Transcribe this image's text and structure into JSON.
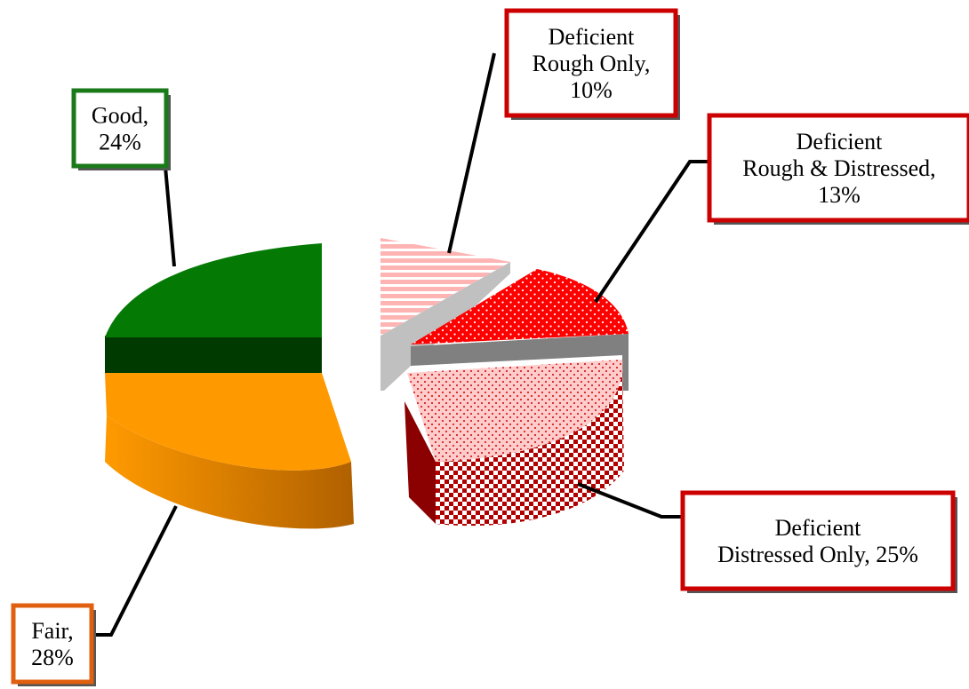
{
  "chart_data": {
    "type": "pie",
    "title": "",
    "style": "3d-exploded",
    "slices": [
      {
        "label_lines": [
          "Good,",
          "24%"
        ],
        "name": "Good",
        "value": 24,
        "color": "#008000",
        "border": "#1a7a1a"
      },
      {
        "label_lines": [
          "Fair,",
          "28%"
        ],
        "name": "Fair",
        "value": 28,
        "color": "#ff9900",
        "border": "#e06010"
      },
      {
        "label_lines": [
          "Deficient",
          "Rough Only,",
          "10%"
        ],
        "name": "Deficient Rough Only",
        "value": 10,
        "color": "#ffb0b0",
        "border": "#cc0000"
      },
      {
        "label_lines": [
          "Deficient",
          "Rough & Distressed,",
          "13%"
        ],
        "name": "Deficient Rough & Distressed",
        "value": 13,
        "color": "#ff0000",
        "border": "#cc0000"
      },
      {
        "label_lines": [
          "Deficient",
          "Distressed  Only, 25%"
        ],
        "name": "Deficient Distressed Only",
        "value": 25,
        "color": "#ffc8c8",
        "border": "#cc0000"
      }
    ]
  }
}
